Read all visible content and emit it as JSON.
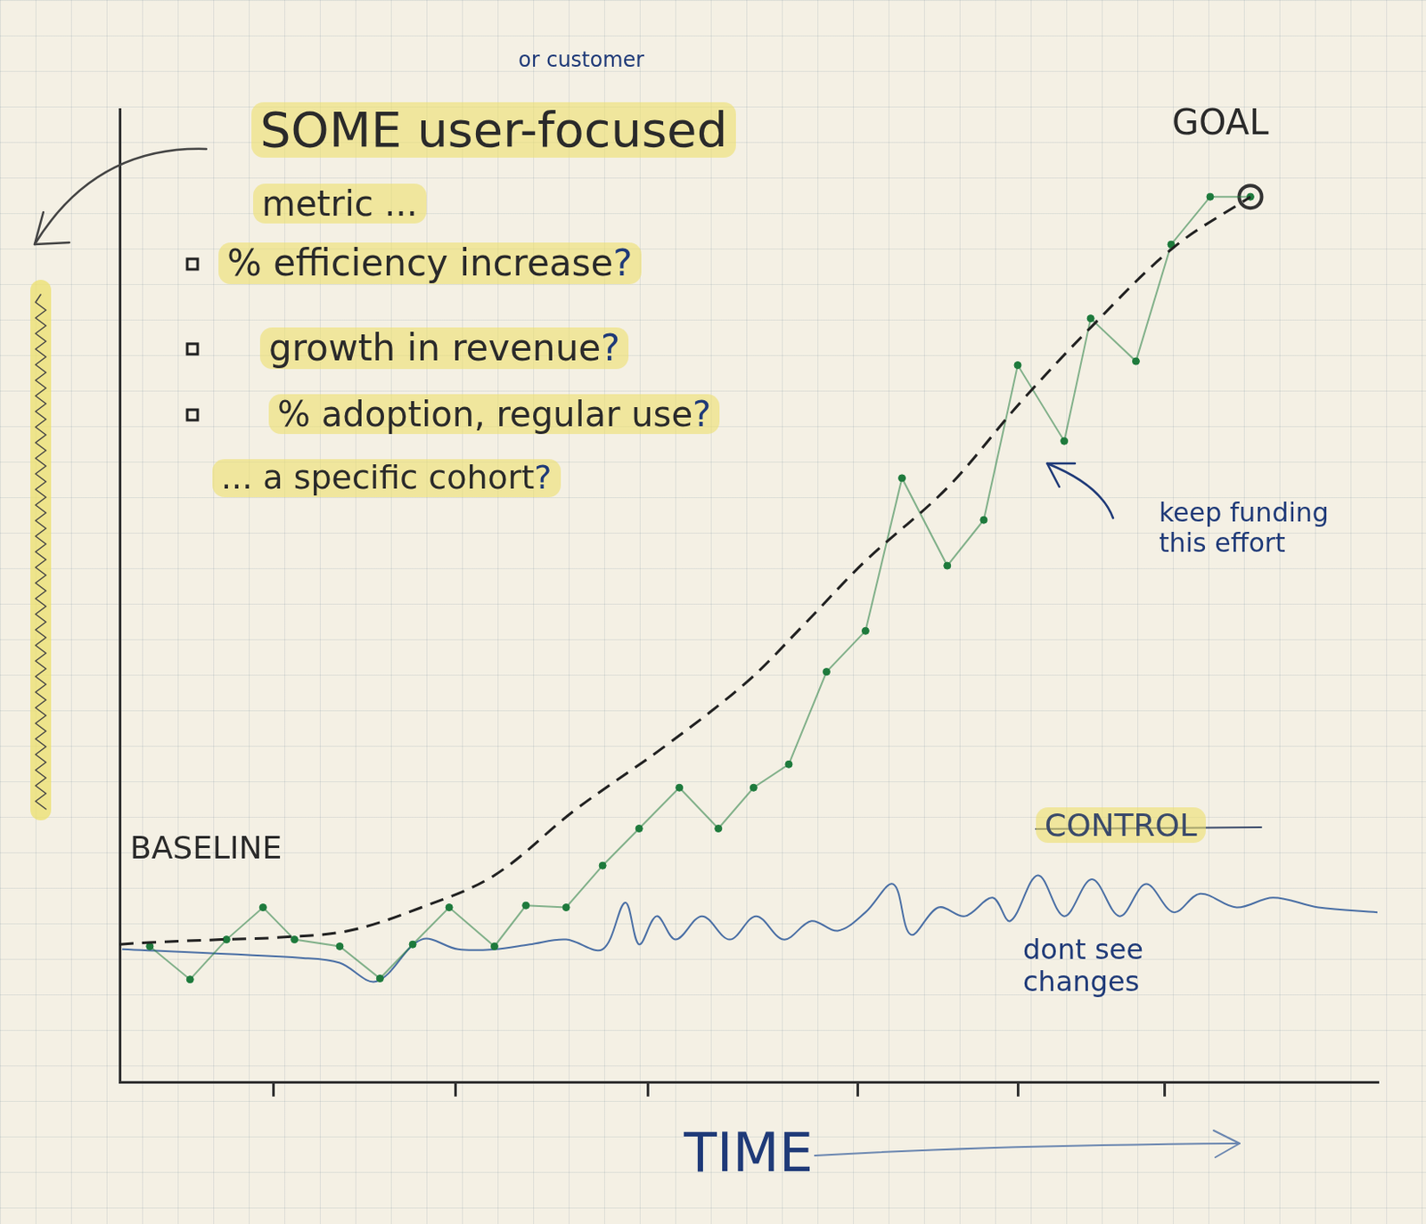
{
  "chart_data": {
    "type": "line",
    "x_label": "TIME",
    "xlim": [
      0,
      100
    ],
    "ylim": [
      0,
      100
    ],
    "xticks": [
      12.2,
      26.7,
      42.0,
      58.7,
      71.4,
      83.1
    ],
    "tick_labels": false,
    "grid": false,
    "series": [
      {
        "color": "#222222",
        "line_style": "dashed",
        "marker": "none",
        "x": [
          0,
          2.4,
          8.1,
          12.5,
          18.2,
          24.0,
          29.8,
          36.2,
          43.4,
          49.9,
          54.3,
          59.3,
          65.8,
          71.5,
          77.3,
          83.8,
          89.9
        ],
        "values": [
          14.2,
          14.4,
          14.7,
          14.9,
          15.6,
          18.0,
          21.3,
          28.0,
          34.6,
          41.2,
          46.9,
          53.6,
          61.1,
          69.7,
          77.7,
          85.8,
          91.0
        ]
      },
      {
        "color": "#1e7a3c",
        "line_style": "solid",
        "marker": "circle",
        "x": [
          2.4,
          5.6,
          8.5,
          11.4,
          13.9,
          17.5,
          20.7,
          23.3,
          26.2,
          29.8,
          32.3,
          35.5,
          38.4,
          41.3,
          44.5,
          47.6,
          50.4,
          53.2,
          56.2,
          59.3,
          62.2,
          65.8,
          68.7,
          71.4,
          75.1,
          77.2,
          80.8,
          83.6,
          86.7,
          89.9
        ],
        "values": [
          14.0,
          10.6,
          14.7,
          18.0,
          14.7,
          14.0,
          10.7,
          14.2,
          18.0,
          14.0,
          18.2,
          18.0,
          22.3,
          26.1,
          30.3,
          26.1,
          30.3,
          32.7,
          42.2,
          46.4,
          62.1,
          53.1,
          57.8,
          73.7,
          65.9,
          78.5,
          74.1,
          86.1,
          91.0,
          91.0
        ]
      },
      {
        "color": "#4a6fa5",
        "line_style": "solid",
        "marker": "none",
        "x": [
          0.2,
          14.6,
          17.5,
          20.4,
          24.0,
          26.9,
          29.8,
          32.6,
          35.5,
          38.4,
          40.2,
          41.3,
          42.7,
          44.2,
          46.3,
          48.5,
          50.6,
          52.8,
          55.0,
          57.1,
          59.3,
          61.5,
          62.9,
          65.1,
          67.2,
          69.4,
          70.8,
          73.0,
          75.1,
          77.3,
          79.5,
          81.6,
          83.8,
          85.9,
          88.8,
          91.7,
          95.3,
          100
        ],
        "values": [
          13.7,
          12.8,
          12.3,
          10.4,
          14.7,
          13.7,
          13.7,
          14.2,
          14.7,
          13.7,
          18.5,
          14.2,
          17.1,
          14.7,
          17.1,
          14.7,
          17.1,
          14.7,
          16.6,
          15.6,
          17.5,
          20.4,
          15.2,
          18.0,
          17.1,
          19.0,
          16.6,
          21.3,
          17.1,
          20.9,
          17.1,
          20.4,
          17.5,
          19.4,
          18.0,
          19.0,
          18.0,
          17.5
        ]
      },
      {
        "color": "#333333",
        "marker": "ring",
        "x": [
          89.9
        ],
        "values": [
          91.0
        ]
      }
    ],
    "annotations": [
      {
        "text": "or customer"
      },
      {
        "text": "SOME user-focused"
      },
      {
        "text": "metric ..."
      },
      {
        "text": "% efficiency increase?"
      },
      {
        "text": "growth in revenue?"
      },
      {
        "text": "% adoption, regular use?"
      },
      {
        "text": "... a specific cohort?"
      },
      {
        "text": "GOAL"
      },
      {
        "text": "keep funding this effort"
      },
      {
        "text": "BASELINE"
      },
      {
        "text": "CONTROL"
      },
      {
        "text": "dont see changes"
      }
    ]
  }
}
